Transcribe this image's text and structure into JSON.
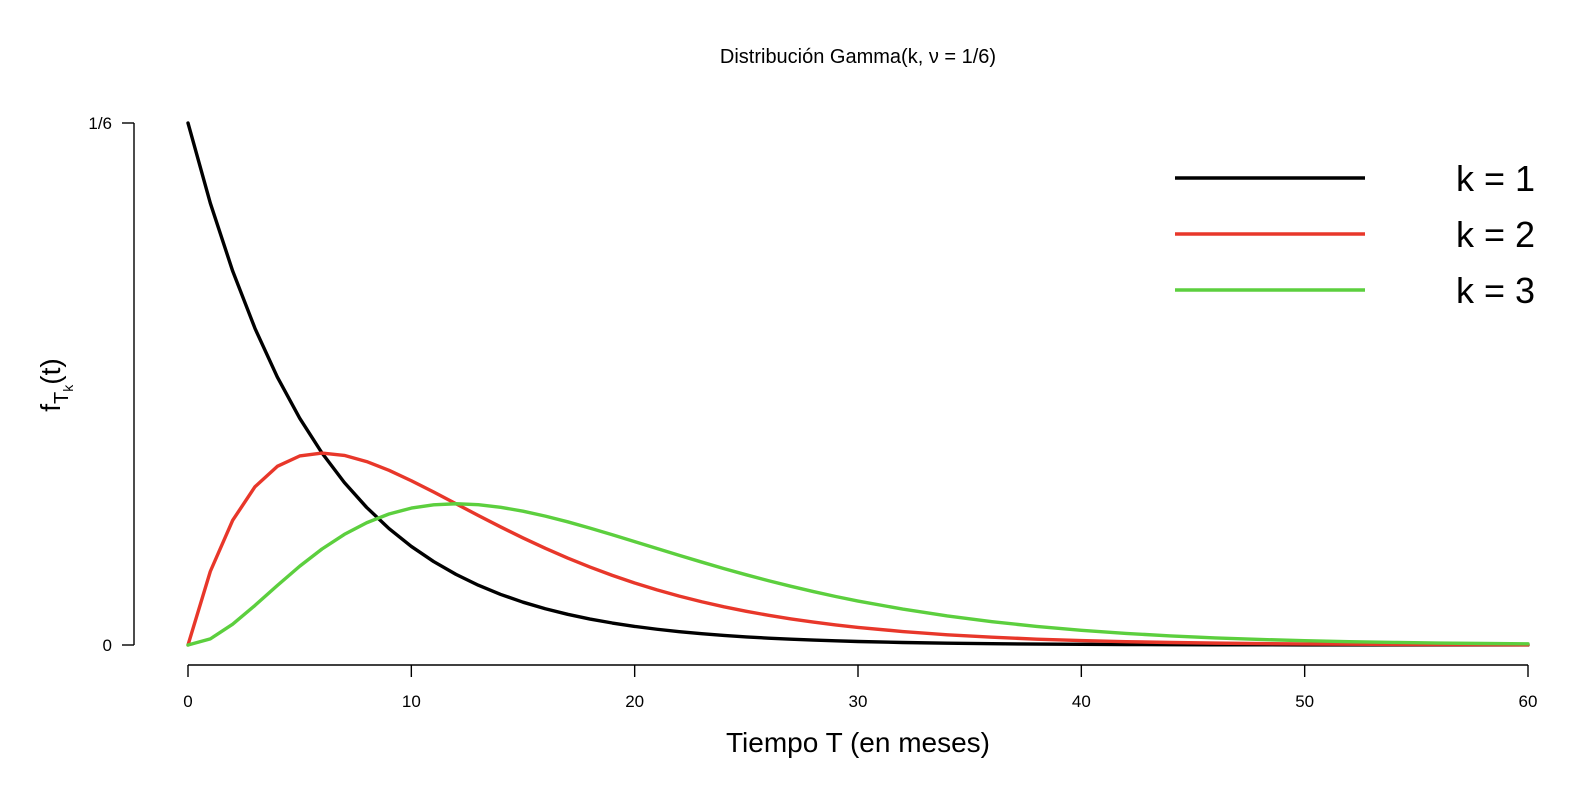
{
  "chart_data": {
    "type": "line",
    "title": "Distribución Gamma(k, ν = 1/6)",
    "xlabel": "Tiempo T (en meses)",
    "ylabel": "fTk(t)",
    "ylabel_parts": {
      "base": "f",
      "sub": "T",
      "subsub": "k",
      "tail": "(t)"
    },
    "xlim": [
      0,
      60
    ],
    "ylim": [
      0,
      0.16666667
    ],
    "x_ticks": [
      0,
      10,
      20,
      30,
      40,
      50,
      60
    ],
    "y_ticks": [
      {
        "value": 0,
        "label": "0"
      },
      {
        "value": 0.16666667,
        "label": "1/6"
      }
    ],
    "grid": false,
    "legend_position": "top-right",
    "x": [
      0,
      1,
      2,
      3,
      4,
      5,
      6,
      7,
      8,
      9,
      10,
      11,
      12,
      13,
      14,
      15,
      16,
      17,
      18,
      19,
      20,
      21,
      22,
      23,
      24,
      25,
      26,
      27,
      28,
      29,
      30,
      32,
      34,
      36,
      38,
      40,
      42,
      44,
      46,
      48,
      50,
      52,
      54,
      56,
      58,
      60
    ],
    "series": [
      {
        "name": "k = 1",
        "color": "#000000",
        "values": [
          0.16667,
          0.14107,
          0.1194,
          0.10108,
          0.08556,
          0.07242,
          0.0613,
          0.05189,
          0.04392,
          0.03718,
          0.03147,
          0.02664,
          0.02255,
          0.01908,
          0.01615,
          0.01367,
          0.01157,
          0.0098,
          0.00829,
          0.00702,
          0.00594,
          0.00503,
          0.00426,
          0.0036,
          0.00305,
          0.00258,
          0.00218,
          0.00185,
          0.00157,
          0.00133,
          0.00112,
          0.0008,
          0.00058,
          0.00041,
          0.0003,
          0.00021,
          0.00015,
          0.00011,
          8e-05,
          6e-05,
          4e-05,
          3e-05,
          2e-05,
          1e-05,
          1e-05,
          1e-05
        ]
      },
      {
        "name": "k = 2",
        "color": "#e8372a",
        "values": [
          0,
          0.02351,
          0.0398,
          0.05054,
          0.05704,
          0.06035,
          0.0613,
          0.06053,
          0.05856,
          0.05577,
          0.05245,
          0.04884,
          0.0451,
          0.04135,
          0.03769,
          0.03418,
          0.03086,
          0.02776,
          0.02488,
          0.02223,
          0.0198,
          0.0176,
          0.01561,
          0.01381,
          0.0122,
          0.01076,
          0.00947,
          0.00833,
          0.00731,
          0.00641,
          0.00562,
          0.0043,
          0.00327,
          0.00248,
          0.00187,
          0.00141,
          0.00106,
          0.0008,
          0.0006,
          0.00045,
          0.00034,
          0.00025,
          0.00019,
          0.00014,
          0.0001,
          7e-05
        ]
      },
      {
        "name": "k = 3",
        "color": "#5ccf3e",
        "values": [
          0,
          0.00196,
          0.00663,
          0.01264,
          0.01901,
          0.02515,
          0.03065,
          0.03531,
          0.03904,
          0.04183,
          0.04371,
          0.04477,
          0.0451,
          0.0448,
          0.04397,
          0.04272,
          0.04114,
          0.03933,
          0.03732,
          0.03519,
          0.033,
          0.0308,
          0.02862,
          0.02648,
          0.0244,
          0.02241,
          0.02052,
          0.01874,
          0.01706,
          0.01548,
          0.01404,
          0.01147,
          0.00928,
          0.00745,
          0.00592,
          0.00469,
          0.0037,
          0.0029,
          0.00227,
          0.00177,
          0.00137,
          0.00106,
          0.00082,
          0.00063,
          0.00048,
          0.00037
        ]
      }
    ]
  }
}
